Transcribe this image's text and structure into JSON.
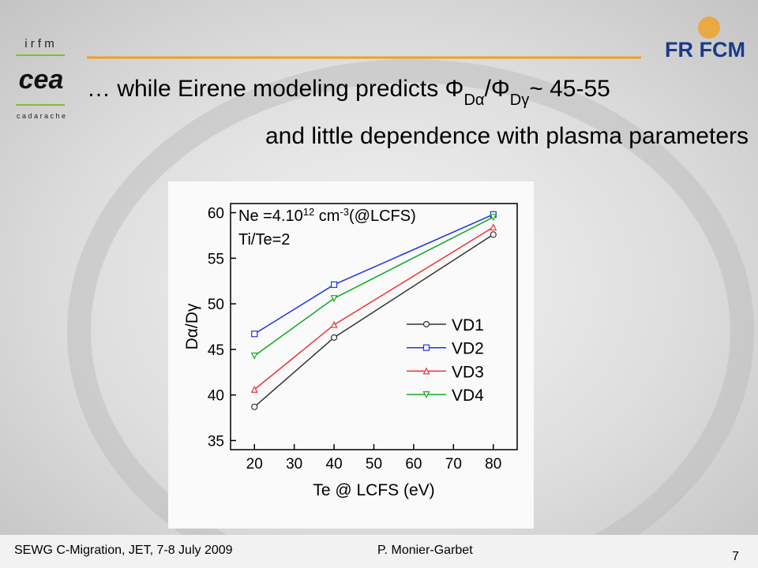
{
  "slide": {
    "title_segments": [
      {
        "text": "… while Eirene modeling predicts Φ"
      },
      {
        "text": "Dα",
        "sub": true
      },
      {
        "text": "/Φ"
      },
      {
        "text": "Dγ",
        "sub": true
      },
      {
        "text": "~ 45-55"
      }
    ],
    "subtitle": "and little dependence with plasma parameters",
    "logo_top": "i r f m",
    "logo_bottom": "c a d a r a c h e",
    "logo_right": "FR FCM",
    "footer_left": "SEWG C-Migration, JET, 7-8 July 2009",
    "footer_center": "P. Monier-Garbet",
    "page_number": "7"
  },
  "chart_data": {
    "type": "line",
    "annotation_segments": [
      {
        "text": "Ne =4.10"
      },
      {
        "text": "12",
        "sup": true
      },
      {
        "text": " cm"
      },
      {
        "text": "-3",
        "sup": true
      },
      {
        "text": "(@LCFS)"
      }
    ],
    "annotation2": "Ti/Te=2",
    "x_label": "Te @ LCFS (eV)",
    "y_label": "Dα/Dγ",
    "x": [
      20,
      40,
      80
    ],
    "xlim": [
      14,
      86
    ],
    "xticks": [
      20,
      30,
      40,
      50,
      60,
      70,
      80
    ],
    "ylim": [
      34,
      61
    ],
    "yticks": [
      35,
      40,
      45,
      50,
      55,
      60
    ],
    "legend": "lower right",
    "series": [
      {
        "name": "VD1",
        "color": "#333333",
        "marker": "circle",
        "values": [
          38.7,
          46.3,
          57.6
        ]
      },
      {
        "name": "VD2",
        "color": "#2233dd",
        "marker": "square",
        "values": [
          46.7,
          52.1,
          59.8
        ]
      },
      {
        "name": "VD3",
        "color": "#ee3333",
        "marker": "triangle-up",
        "values": [
          40.6,
          47.7,
          58.4
        ]
      },
      {
        "name": "VD4",
        "color": "#11aa22",
        "marker": "triangle-down",
        "values": [
          44.3,
          50.6,
          59.5
        ]
      }
    ]
  }
}
